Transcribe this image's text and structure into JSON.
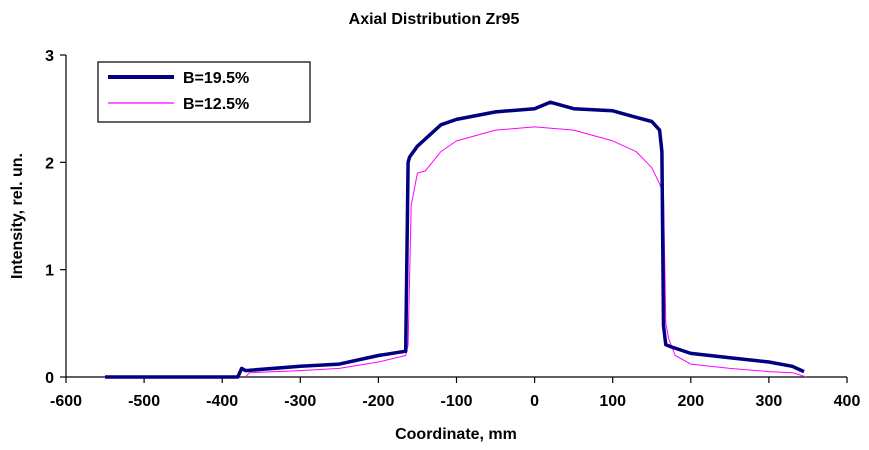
{
  "chart_data": {
    "type": "line",
    "title": "Axial Distribution Zr95",
    "xlabel": "Coordinate, mm",
    "ylabel": "Intensity, rel. un.",
    "xlim": [
      -600,
      400
    ],
    "ylim": [
      0,
      3
    ],
    "xticks": [
      "-600",
      "-500",
      "-400",
      "-300",
      "-200",
      "-100",
      "0",
      "100",
      "200",
      "300",
      "400"
    ],
    "yticks": [
      "0",
      "1",
      "2",
      "3"
    ],
    "legend_position": "top-left",
    "grid": false,
    "series": [
      {
        "name": "B=19.5%",
        "color": "#000080",
        "x": [
          -550,
          -380,
          -375,
          -370,
          -300,
          -250,
          -200,
          -165,
          -162,
          -160,
          -150,
          -120,
          -100,
          -50,
          0,
          20,
          50,
          100,
          130,
          150,
          160,
          163,
          165,
          168,
          175,
          200,
          250,
          300,
          330,
          345
        ],
        "y": [
          0,
          0,
          0.08,
          0.06,
          0.1,
          0.12,
          0.2,
          0.24,
          2.0,
          2.05,
          2.15,
          2.35,
          2.4,
          2.47,
          2.5,
          2.56,
          2.5,
          2.48,
          2.42,
          2.38,
          2.3,
          2.1,
          0.48,
          0.3,
          0.28,
          0.22,
          0.18,
          0.14,
          0.1,
          0.05
        ]
      },
      {
        "name": "B=12.5%",
        "color": "#ff00ff",
        "x": [
          -370,
          -365,
          -300,
          -250,
          -200,
          -165,
          -162,
          -158,
          -150,
          -140,
          -120,
          -100,
          -50,
          0,
          50,
          100,
          130,
          150,
          160,
          165,
          168,
          172,
          180,
          200,
          250,
          300,
          330,
          348
        ],
        "y": [
          0,
          0.04,
          0.06,
          0.08,
          0.14,
          0.2,
          0.3,
          1.6,
          1.9,
          1.92,
          2.1,
          2.2,
          2.3,
          2.33,
          2.3,
          2.2,
          2.1,
          1.95,
          1.8,
          1.7,
          0.5,
          0.35,
          0.2,
          0.12,
          0.08,
          0.05,
          0.04,
          0
        ]
      }
    ]
  }
}
